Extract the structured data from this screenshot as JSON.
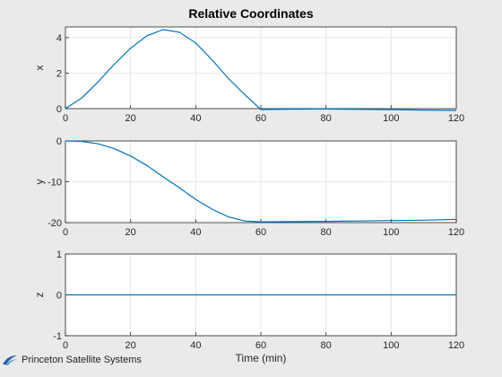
{
  "chart_data": [
    {
      "type": "line",
      "title": "Relative Coordinates",
      "xlabel": "",
      "ylabel": "x",
      "xlim": [
        0,
        120
      ],
      "ylim": [
        0,
        4.6
      ],
      "xticks": [
        "0",
        "20",
        "40",
        "60",
        "80",
        "100",
        "120"
      ],
      "yticks": [
        "0",
        "2",
        "4"
      ],
      "grid": true,
      "color": "#0072bd",
      "x": [
        0,
        5,
        10,
        15,
        20,
        25,
        30,
        35,
        40,
        45,
        50,
        55,
        60,
        70,
        80,
        90,
        100,
        110,
        120
      ],
      "y": [
        0,
        0.6,
        1.5,
        2.5,
        3.4,
        4.1,
        4.45,
        4.3,
        3.7,
        2.75,
        1.7,
        0.8,
        -0.05,
        -0.03,
        -0.02,
        -0.04,
        -0.06,
        -0.08,
        -0.1
      ]
    },
    {
      "type": "line",
      "title": "",
      "xlabel": "",
      "ylabel": "y",
      "xlim": [
        0,
        120
      ],
      "ylim": [
        -20,
        0
      ],
      "xticks": [
        "0",
        "20",
        "40",
        "60",
        "80",
        "100",
        "120"
      ],
      "yticks": [
        "0",
        "-10",
        "-20"
      ],
      "grid": true,
      "color": "#0072bd",
      "x": [
        0,
        5,
        10,
        15,
        20,
        25,
        30,
        35,
        40,
        45,
        50,
        55,
        60,
        70,
        80,
        90,
        100,
        110,
        120
      ],
      "y": [
        0,
        -0.1,
        -0.7,
        -1.9,
        -3.7,
        -6.0,
        -8.8,
        -11.5,
        -14.3,
        -16.7,
        -18.6,
        -19.6,
        -19.8,
        -19.75,
        -19.7,
        -19.6,
        -19.5,
        -19.4,
        -19.2
      ]
    },
    {
      "type": "line",
      "title": "",
      "xlabel": "Time (min)",
      "ylabel": "z",
      "xlim": [
        0,
        120
      ],
      "ylim": [
        -1,
        1
      ],
      "xticks": [
        "0",
        "20",
        "40",
        "60",
        "80",
        "100",
        "120"
      ],
      "yticks": [
        "1",
        "0",
        "-1"
      ],
      "grid": true,
      "color": "#0072bd",
      "x": [
        0,
        120
      ],
      "y": [
        0,
        0
      ]
    }
  ],
  "logo": {
    "text": "Princeton Satellite Systems"
  }
}
